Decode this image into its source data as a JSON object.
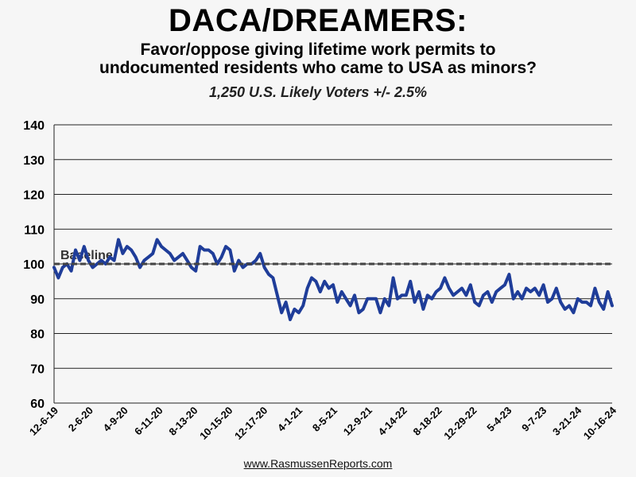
{
  "chart_data": {
    "type": "line",
    "title": "DACA/DREAMERS:",
    "subtitle_lines": [
      "Favor/oppose giving lifetime work permits to",
      "undocumented residents who came to USA as minors?"
    ],
    "sample": "1,250 U.S. Likely Voters +/- 2.5%",
    "source": "www.RasmussenReports.com",
    "xlabel": "",
    "ylabel": "",
    "ylim": [
      60,
      140
    ],
    "yticks": [
      60,
      70,
      80,
      90,
      100,
      110,
      120,
      130,
      140
    ],
    "grid": true,
    "xtick_labels": [
      "12-6-19",
      "2-6-20",
      "4-9-20",
      "6-11-20",
      "8-13-20",
      "10-15-20",
      "12-17-20",
      "4-1-21",
      "8-5-21",
      "12-9-21",
      "4-14-22",
      "8-18-22",
      "12-29-22",
      "5-4-23",
      "9-7-23",
      "3-21-24",
      "10-16-24"
    ],
    "baseline": {
      "label": "Baseline",
      "value": 100
    },
    "series": [
      {
        "color": "#1f3d99",
        "values": [
          99,
          96,
          99,
          100,
          98,
          104,
          101,
          105,
          101,
          99,
          100,
          101,
          100,
          102,
          101,
          107,
          103,
          105,
          104,
          102,
          99,
          101,
          102,
          103,
          107,
          105,
          104,
          103,
          101,
          102,
          103,
          101,
          99,
          98,
          105,
          104,
          104,
          103,
          100,
          102,
          105,
          104,
          98,
          101,
          99,
          100,
          100,
          101,
          103,
          99,
          97,
          96,
          91,
          86,
          89,
          84,
          87,
          86,
          88,
          93,
          96,
          95,
          92,
          95,
          93,
          94,
          89,
          92,
          90,
          88,
          91,
          86,
          87,
          90,
          90,
          90,
          86,
          90,
          88,
          96,
          90,
          91,
          91,
          95,
          89,
          92,
          87,
          91,
          90,
          92,
          93,
          96,
          93,
          91,
          92,
          93,
          91,
          94,
          89,
          88,
          91,
          92,
          89,
          92,
          93,
          94,
          97,
          90,
          92,
          90,
          93,
          92,
          93,
          91,
          94,
          89,
          90,
          93,
          89,
          87,
          88,
          86,
          90,
          89,
          89,
          88,
          93,
          89,
          87,
          92,
          88
        ]
      }
    ]
  }
}
